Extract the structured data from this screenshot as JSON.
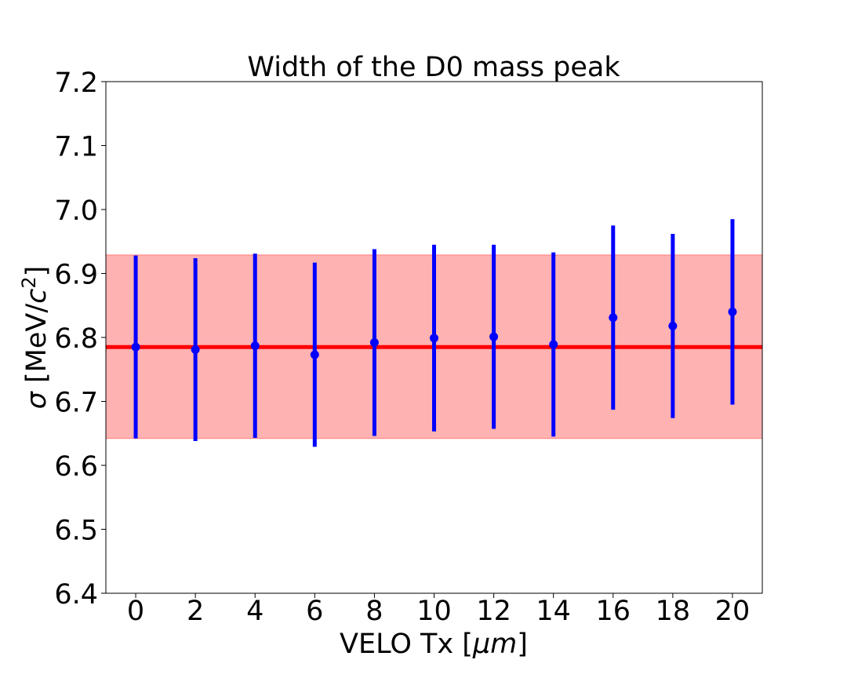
{
  "chart_data": {
    "type": "scatter",
    "title": "Width of the D0 mass peak",
    "xlabel": "VELO Tx [",
    "xlabel_unit": "μm",
    "xlabel_close": "]",
    "ylabel_symbol": "σ",
    "ylabel_text": " [MeV/",
    "ylabel_c": "c",
    "ylabel_exp": "2",
    "ylabel_close": "]",
    "xlim": [
      -1,
      21
    ],
    "ylim": [
      6.4,
      7.2
    ],
    "xticks": [
      "0",
      "2",
      "4",
      "6",
      "8",
      "10",
      "12",
      "14",
      "16",
      "18",
      "20"
    ],
    "yticks": [
      "6.4",
      "6.5",
      "6.6",
      "6.7",
      "6.8",
      "6.9",
      "7.0",
      "7.1",
      "7.2"
    ],
    "grid": false,
    "reference_line": {
      "y": 6.785,
      "color": "#ff0000"
    },
    "reference_band": {
      "ymin": 6.642,
      "ymax": 6.929,
      "color": "#ff0000",
      "opacity": 0.3
    },
    "series": [
      {
        "color": "#0000ff",
        "points": [
          {
            "x": 0,
            "y": 6.785,
            "err": 0.143
          },
          {
            "x": 2,
            "y": 6.781,
            "err": 0.143
          },
          {
            "x": 4,
            "y": 6.787,
            "err": 0.144
          },
          {
            "x": 6,
            "y": 6.773,
            "err": 0.144
          },
          {
            "x": 8,
            "y": 6.792,
            "err": 0.146
          },
          {
            "x": 10,
            "y": 6.799,
            "err": 0.146
          },
          {
            "x": 12,
            "y": 6.801,
            "err": 0.144
          },
          {
            "x": 14,
            "y": 6.789,
            "err": 0.144
          },
          {
            "x": 16,
            "y": 6.831,
            "err": 0.144
          },
          {
            "x": 18,
            "y": 6.818,
            "err": 0.144
          },
          {
            "x": 20,
            "y": 6.84,
            "err": 0.145
          }
        ]
      }
    ]
  }
}
